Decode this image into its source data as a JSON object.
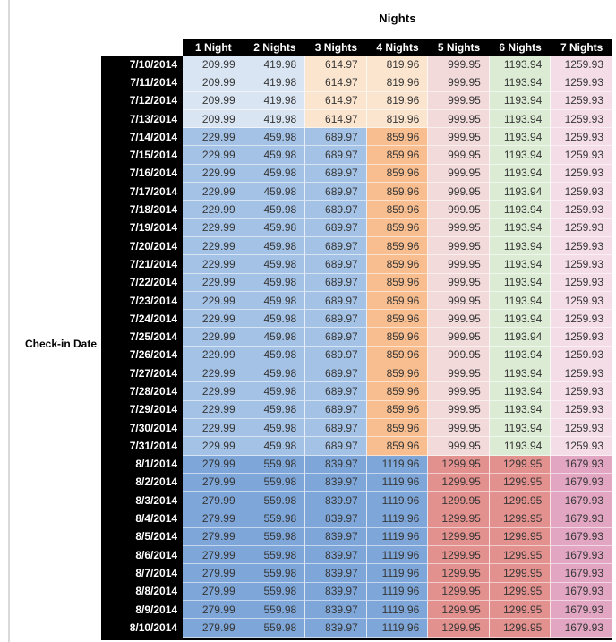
{
  "page": {
    "background": "#FFFFFF",
    "left_rule_color": "#D9D9D9"
  },
  "styles": {
    "header_bg": "#000000",
    "header_text": "#FFFFFF",
    "date_bg": "#000000",
    "date_text": "#FFFFFF",
    "value_text": "#363636"
  },
  "palette": {
    "light_blue": "#D9E5F2",
    "mid_blue": "#A4C2E6",
    "strong_blue": "#7EA6D8",
    "light_orange": "#FBE5CE",
    "orange": "#F9BE8F",
    "light_red": "#F2DADA",
    "light_green": "#DCEBD3",
    "light_pink": "#F4DDE7",
    "salmon": "#E2918E",
    "mauve": "#E2A6C3"
  },
  "bands": [
    {
      "name": "early-july",
      "cell_colors": [
        "light_blue",
        "light_blue",
        "light_orange",
        "light_orange",
        "light_red",
        "light_green",
        "light_pink"
      ]
    },
    {
      "name": "mid-july",
      "cell_colors": [
        "mid_blue",
        "mid_blue",
        "mid_blue",
        "orange",
        "light_red",
        "light_green",
        "light_pink"
      ]
    },
    {
      "name": "august",
      "cell_colors": [
        "strong_blue",
        "strong_blue",
        "strong_blue",
        "strong_blue",
        "salmon",
        "salmon",
        "mauve"
      ]
    }
  ],
  "chart_data": {
    "type": "table",
    "title": "Nights",
    "row_axis_label": "Check-in Date",
    "columns": [
      "1 Night",
      "2 Nights",
      "3 Nights",
      "4 Nights",
      "5 Nights",
      "6 Nights",
      "7 Nights"
    ],
    "rows": [
      {
        "date": "7/10/2014",
        "band": 0,
        "values": [
          209.99,
          419.98,
          614.97,
          819.96,
          999.95,
          1193.94,
          1259.93
        ]
      },
      {
        "date": "7/11/2014",
        "band": 0,
        "values": [
          209.99,
          419.98,
          614.97,
          819.96,
          999.95,
          1193.94,
          1259.93
        ]
      },
      {
        "date": "7/12/2014",
        "band": 0,
        "values": [
          209.99,
          419.98,
          614.97,
          819.96,
          999.95,
          1193.94,
          1259.93
        ]
      },
      {
        "date": "7/13/2014",
        "band": 0,
        "values": [
          209.99,
          419.98,
          614.97,
          819.96,
          999.95,
          1193.94,
          1259.93
        ]
      },
      {
        "date": "7/14/2014",
        "band": 1,
        "values": [
          229.99,
          459.98,
          689.97,
          859.96,
          999.95,
          1193.94,
          1259.93
        ]
      },
      {
        "date": "7/15/2014",
        "band": 1,
        "values": [
          229.99,
          459.98,
          689.97,
          859.96,
          999.95,
          1193.94,
          1259.93
        ]
      },
      {
        "date": "7/16/2014",
        "band": 1,
        "values": [
          229.99,
          459.98,
          689.97,
          859.96,
          999.95,
          1193.94,
          1259.93
        ]
      },
      {
        "date": "7/17/2014",
        "band": 1,
        "values": [
          229.99,
          459.98,
          689.97,
          859.96,
          999.95,
          1193.94,
          1259.93
        ]
      },
      {
        "date": "7/18/2014",
        "band": 1,
        "values": [
          229.99,
          459.98,
          689.97,
          859.96,
          999.95,
          1193.94,
          1259.93
        ]
      },
      {
        "date": "7/19/2014",
        "band": 1,
        "values": [
          229.99,
          459.98,
          689.97,
          859.96,
          999.95,
          1193.94,
          1259.93
        ]
      },
      {
        "date": "7/20/2014",
        "band": 1,
        "values": [
          229.99,
          459.98,
          689.97,
          859.96,
          999.95,
          1193.94,
          1259.93
        ]
      },
      {
        "date": "7/21/2014",
        "band": 1,
        "values": [
          229.99,
          459.98,
          689.97,
          859.96,
          999.95,
          1193.94,
          1259.93
        ]
      },
      {
        "date": "7/22/2014",
        "band": 1,
        "values": [
          229.99,
          459.98,
          689.97,
          859.96,
          999.95,
          1193.94,
          1259.93
        ]
      },
      {
        "date": "7/23/2014",
        "band": 1,
        "values": [
          229.99,
          459.98,
          689.97,
          859.96,
          999.95,
          1193.94,
          1259.93
        ]
      },
      {
        "date": "7/24/2014",
        "band": 1,
        "values": [
          229.99,
          459.98,
          689.97,
          859.96,
          999.95,
          1193.94,
          1259.93
        ]
      },
      {
        "date": "7/25/2014",
        "band": 1,
        "values": [
          229.99,
          459.98,
          689.97,
          859.96,
          999.95,
          1193.94,
          1259.93
        ]
      },
      {
        "date": "7/26/2014",
        "band": 1,
        "values": [
          229.99,
          459.98,
          689.97,
          859.96,
          999.95,
          1193.94,
          1259.93
        ]
      },
      {
        "date": "7/27/2014",
        "band": 1,
        "values": [
          229.99,
          459.98,
          689.97,
          859.96,
          999.95,
          1193.94,
          1259.93
        ]
      },
      {
        "date": "7/28/2014",
        "band": 1,
        "values": [
          229.99,
          459.98,
          689.97,
          859.96,
          999.95,
          1193.94,
          1259.93
        ]
      },
      {
        "date": "7/29/2014",
        "band": 1,
        "values": [
          229.99,
          459.98,
          689.97,
          859.96,
          999.95,
          1193.94,
          1259.93
        ]
      },
      {
        "date": "7/30/2014",
        "band": 1,
        "values": [
          229.99,
          459.98,
          689.97,
          859.96,
          999.95,
          1193.94,
          1259.93
        ]
      },
      {
        "date": "7/31/2014",
        "band": 1,
        "values": [
          229.99,
          459.98,
          689.97,
          859.96,
          999.95,
          1193.94,
          1259.93
        ]
      },
      {
        "date": "8/1/2014",
        "band": 2,
        "values": [
          279.99,
          559.98,
          839.97,
          1119.96,
          1299.95,
          1299.95,
          1679.93
        ]
      },
      {
        "date": "8/2/2014",
        "band": 2,
        "values": [
          279.99,
          559.98,
          839.97,
          1119.96,
          1299.95,
          1299.95,
          1679.93
        ]
      },
      {
        "date": "8/3/2014",
        "band": 2,
        "values": [
          279.99,
          559.98,
          839.97,
          1119.96,
          1299.95,
          1299.95,
          1679.93
        ]
      },
      {
        "date": "8/4/2014",
        "band": 2,
        "values": [
          279.99,
          559.98,
          839.97,
          1119.96,
          1299.95,
          1299.95,
          1679.93
        ]
      },
      {
        "date": "8/5/2014",
        "band": 2,
        "values": [
          279.99,
          559.98,
          839.97,
          1119.96,
          1299.95,
          1299.95,
          1679.93
        ]
      },
      {
        "date": "8/6/2014",
        "band": 2,
        "values": [
          279.99,
          559.98,
          839.97,
          1119.96,
          1299.95,
          1299.95,
          1679.93
        ]
      },
      {
        "date": "8/7/2014",
        "band": 2,
        "values": [
          279.99,
          559.98,
          839.97,
          1119.96,
          1299.95,
          1299.95,
          1679.93
        ]
      },
      {
        "date": "8/8/2014",
        "band": 2,
        "values": [
          279.99,
          559.98,
          839.97,
          1119.96,
          1299.95,
          1299.95,
          1679.93
        ]
      },
      {
        "date": "8/9/2014",
        "band": 2,
        "values": [
          279.99,
          559.98,
          839.97,
          1119.96,
          1299.95,
          1299.95,
          1679.93
        ]
      },
      {
        "date": "8/10/2014",
        "band": 2,
        "values": [
          279.99,
          559.98,
          839.97,
          1119.96,
          1299.95,
          1299.95,
          1679.93
        ]
      }
    ]
  }
}
